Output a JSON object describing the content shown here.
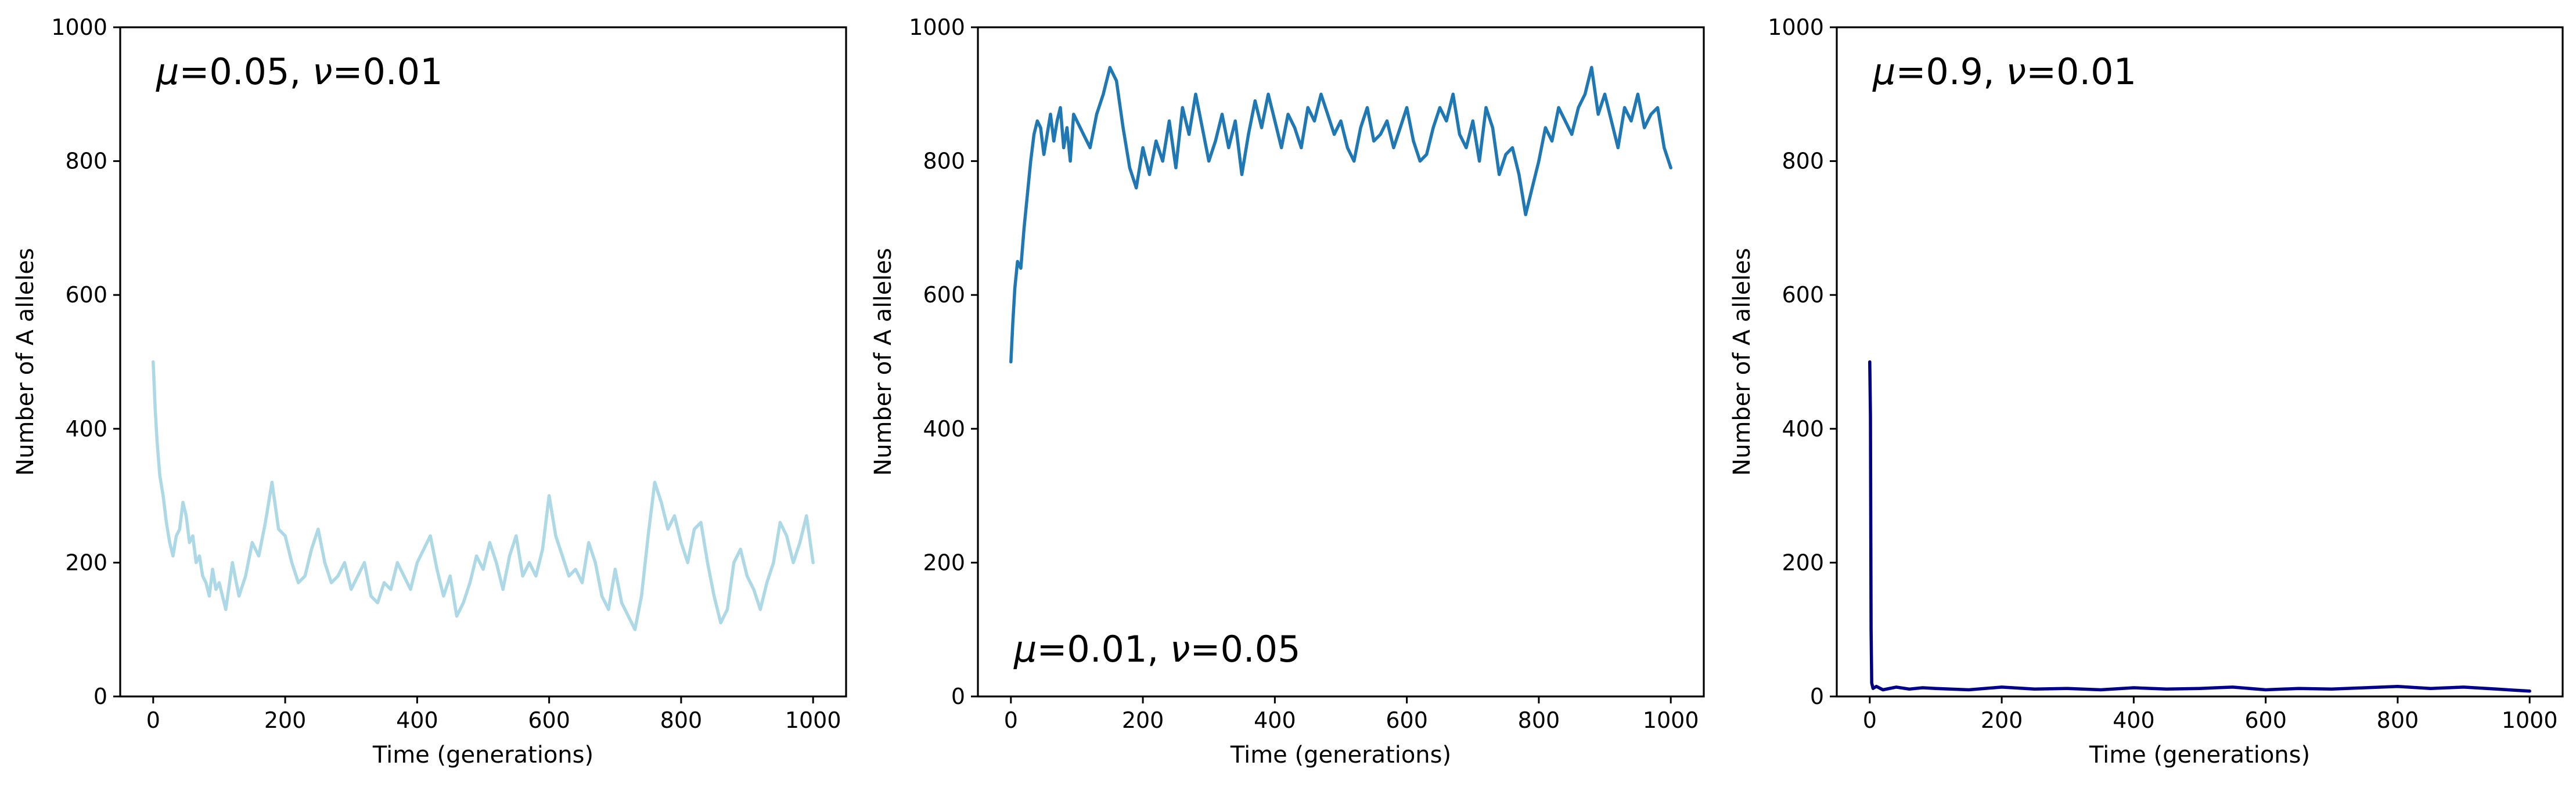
{
  "chart_data": [
    {
      "type": "line",
      "xlabel": "Time (generations)",
      "ylabel": "Number of A alleles",
      "xlim": [
        -50,
        1050
      ],
      "ylim": [
        0,
        1000
      ],
      "xticks": [
        0,
        200,
        400,
        600,
        800,
        1000
      ],
      "yticks": [
        0,
        200,
        400,
        600,
        800,
        1000
      ],
      "grid": false,
      "annotation": {
        "mu": "0.05",
        "nu": "0.01",
        "position": "top-left"
      },
      "series": [
        {
          "color": "#add8e6",
          "x": [
            0,
            3,
            6,
            10,
            15,
            20,
            25,
            30,
            35,
            40,
            45,
            50,
            55,
            60,
            65,
            70,
            75,
            80,
            85,
            90,
            95,
            100,
            110,
            120,
            130,
            140,
            150,
            160,
            170,
            180,
            190,
            200,
            210,
            220,
            230,
            240,
            250,
            260,
            270,
            280,
            290,
            300,
            310,
            320,
            330,
            340,
            350,
            360,
            370,
            380,
            390,
            400,
            410,
            420,
            430,
            440,
            450,
            460,
            470,
            480,
            490,
            500,
            510,
            520,
            530,
            540,
            550,
            560,
            570,
            580,
            590,
            600,
            610,
            620,
            630,
            640,
            650,
            660,
            670,
            680,
            690,
            700,
            710,
            720,
            730,
            740,
            750,
            760,
            770,
            780,
            790,
            800,
            810,
            820,
            830,
            840,
            850,
            860,
            870,
            880,
            890,
            900,
            910,
            920,
            930,
            940,
            950,
            960,
            970,
            980,
            990,
            1000
          ],
          "y": [
            500,
            430,
            380,
            330,
            300,
            260,
            230,
            210,
            240,
            250,
            290,
            270,
            230,
            240,
            200,
            210,
            180,
            170,
            150,
            190,
            160,
            170,
            130,
            200,
            150,
            180,
            230,
            210,
            260,
            320,
            250,
            240,
            200,
            170,
            180,
            220,
            250,
            200,
            170,
            180,
            200,
            160,
            180,
            200,
            150,
            140,
            170,
            160,
            200,
            180,
            160,
            200,
            220,
            240,
            190,
            150,
            180,
            120,
            140,
            170,
            210,
            190,
            230,
            200,
            160,
            210,
            240,
            180,
            200,
            180,
            220,
            300,
            240,
            210,
            180,
            190,
            170,
            230,
            200,
            150,
            130,
            190,
            140,
            120,
            100,
            150,
            240,
            320,
            290,
            250,
            270,
            230,
            200,
            250,
            260,
            200,
            150,
            110,
            130,
            200,
            220,
            180,
            160,
            130,
            170,
            200,
            260,
            240,
            200,
            230,
            270,
            200
          ]
        }
      ]
    },
    {
      "type": "line",
      "xlabel": "Time (generations)",
      "ylabel": "Number of A alleles",
      "xlim": [
        -50,
        1050
      ],
      "ylim": [
        0,
        1000
      ],
      "xticks": [
        0,
        200,
        400,
        600,
        800,
        1000
      ],
      "yticks": [
        0,
        200,
        400,
        600,
        800,
        1000
      ],
      "grid": false,
      "annotation": {
        "mu": "0.01",
        "nu": "0.05",
        "position": "bottom-left"
      },
      "series": [
        {
          "color": "#1f77b4",
          "x": [
            0,
            3,
            6,
            10,
            15,
            20,
            25,
            30,
            35,
            40,
            45,
            50,
            55,
            60,
            65,
            70,
            75,
            80,
            85,
            90,
            95,
            100,
            110,
            120,
            130,
            140,
            150,
            160,
            170,
            180,
            190,
            200,
            210,
            220,
            230,
            240,
            250,
            260,
            270,
            280,
            290,
            300,
            310,
            320,
            330,
            340,
            350,
            360,
            370,
            380,
            390,
            400,
            410,
            420,
            430,
            440,
            450,
            460,
            470,
            480,
            490,
            500,
            510,
            520,
            530,
            540,
            550,
            560,
            570,
            580,
            590,
            600,
            610,
            620,
            630,
            640,
            650,
            660,
            670,
            680,
            690,
            700,
            710,
            720,
            730,
            740,
            750,
            760,
            770,
            780,
            790,
            800,
            810,
            820,
            830,
            840,
            850,
            860,
            870,
            880,
            890,
            900,
            910,
            920,
            930,
            940,
            950,
            960,
            970,
            980,
            990,
            1000
          ],
          "y": [
            500,
            560,
            610,
            650,
            640,
            700,
            750,
            800,
            840,
            860,
            850,
            810,
            840,
            870,
            830,
            860,
            880,
            820,
            850,
            800,
            870,
            860,
            840,
            820,
            870,
            900,
            940,
            920,
            850,
            790,
            760,
            820,
            780,
            830,
            800,
            860,
            790,
            880,
            840,
            900,
            850,
            800,
            830,
            870,
            820,
            860,
            780,
            840,
            890,
            850,
            900,
            860,
            820,
            870,
            850,
            820,
            880,
            860,
            900,
            870,
            840,
            860,
            820,
            800,
            850,
            880,
            830,
            840,
            860,
            820,
            850,
            880,
            830,
            800,
            810,
            850,
            880,
            860,
            900,
            840,
            820,
            860,
            800,
            880,
            850,
            780,
            810,
            820,
            780,
            720,
            760,
            800,
            850,
            830,
            880,
            860,
            840,
            880,
            900,
            940,
            870,
            900,
            860,
            820,
            880,
            860,
            900,
            850,
            870,
            880,
            820,
            790
          ]
        }
      ]
    },
    {
      "type": "line",
      "xlabel": "Time (generations)",
      "ylabel": "Number of A alleles",
      "xlim": [
        -50,
        1050
      ],
      "ylim": [
        0,
        1000
      ],
      "xticks": [
        0,
        200,
        400,
        600,
        800,
        1000
      ],
      "yticks": [
        0,
        200,
        400,
        600,
        800,
        1000
      ],
      "grid": false,
      "annotation": {
        "mu": "0.9",
        "nu": "0.01",
        "position": "top-left"
      },
      "series": [
        {
          "color": "#000080",
          "x": [
            0,
            1,
            2,
            3,
            5,
            10,
            20,
            40,
            60,
            80,
            100,
            150,
            200,
            250,
            300,
            350,
            400,
            450,
            500,
            550,
            600,
            650,
            700,
            750,
            800,
            850,
            900,
            950,
            1000
          ],
          "y": [
            500,
            420,
            100,
            20,
            12,
            15,
            10,
            14,
            11,
            13,
            12,
            10,
            14,
            11,
            12,
            10,
            13,
            11,
            12,
            14,
            10,
            12,
            11,
            13,
            15,
            12,
            14,
            11,
            8
          ]
        }
      ]
    }
  ]
}
